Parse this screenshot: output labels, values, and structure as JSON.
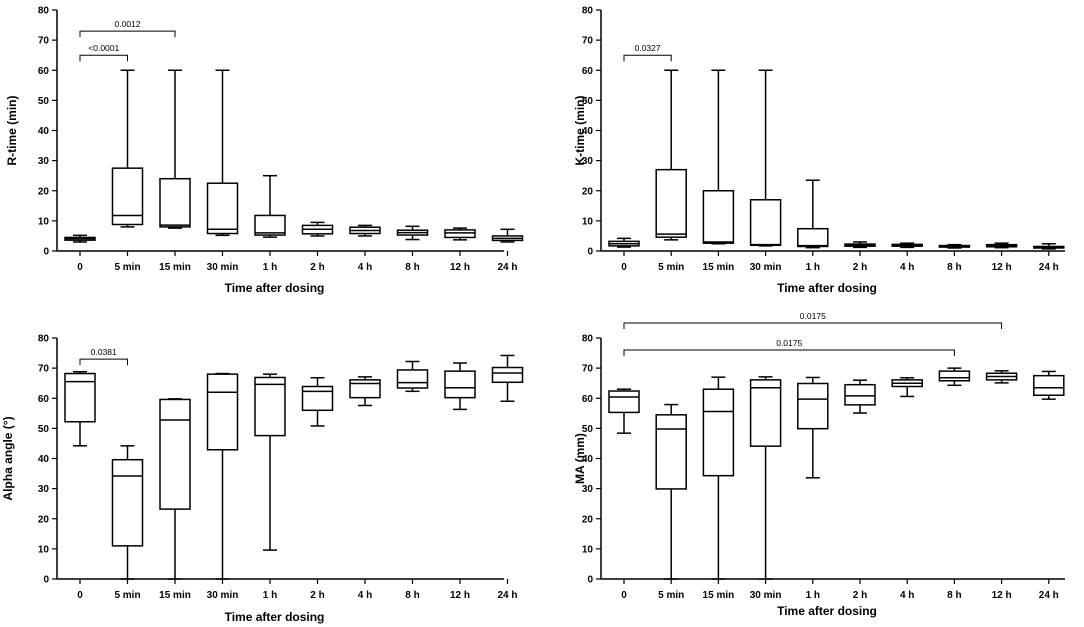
{
  "chart_data": [
    {
      "type": "boxplot",
      "id": "r-time",
      "xlabel": "Time after dosing",
      "ylabel": "R-time (min)",
      "ylim": [
        0,
        80
      ],
      "yticks": [
        0,
        10,
        20,
        30,
        40,
        50,
        60,
        70,
        80
      ],
      "categories": [
        "0",
        "5 min",
        "15 min",
        "30 min",
        "1 h",
        "2 h",
        "4 h",
        "8 h",
        "12 h",
        "24 h"
      ],
      "boxes": [
        {
          "min": 3,
          "q1": 3.6,
          "median": 4.1,
          "q3": 4.5,
          "max": 5.2
        },
        {
          "min": 8,
          "q1": 8.8,
          "median": 11.8,
          "q3": 27.5,
          "max": 60
        },
        {
          "min": 7.6,
          "q1": 8,
          "median": 8.6,
          "q3": 24,
          "max": 60
        },
        {
          "min": 5.2,
          "q1": 5.8,
          "median": 7.2,
          "q3": 22.5,
          "max": 60
        },
        {
          "min": 4.6,
          "q1": 5.3,
          "median": 6,
          "q3": 11.8,
          "max": 25
        },
        {
          "min": 5,
          "q1": 5.7,
          "median": 7.2,
          "q3": 8.5,
          "max": 9.5
        },
        {
          "min": 5,
          "q1": 5.8,
          "median": 6.8,
          "q3": 7.9,
          "max": 8.5
        },
        {
          "min": 3.8,
          "q1": 5.3,
          "median": 6.1,
          "q3": 6.9,
          "max": 8.2
        },
        {
          "min": 3.7,
          "q1": 4.5,
          "median": 6,
          "q3": 7,
          "max": 7.6
        },
        {
          "min": 3,
          "q1": 3.5,
          "median": 4.2,
          "q3": 5,
          "max": 7.2
        }
      ],
      "significance": [
        {
          "from": 0,
          "to": 2,
          "y": 73,
          "label": "0.0012"
        },
        {
          "from": 0,
          "to": 1,
          "y": 65,
          "label": "<0.0001"
        }
      ]
    },
    {
      "type": "boxplot",
      "id": "k-time",
      "xlabel": "Time after dosing",
      "ylabel": "K-time (min)",
      "ylim": [
        0,
        80
      ],
      "yticks": [
        0,
        10,
        20,
        30,
        40,
        50,
        60,
        70,
        80
      ],
      "categories": [
        "0",
        "5 min",
        "15 min",
        "30 min",
        "1 h",
        "2 h",
        "4 h",
        "8 h",
        "12 h",
        "24 h"
      ],
      "boxes": [
        {
          "min": 1.3,
          "q1": 1.7,
          "median": 2.4,
          "q3": 3.2,
          "max": 4.2
        },
        {
          "min": 3.7,
          "q1": 4.6,
          "median": 5.6,
          "q3": 27,
          "max": 60
        },
        {
          "min": 2.4,
          "q1": 2.6,
          "median": 3,
          "q3": 20,
          "max": 60
        },
        {
          "min": 1.7,
          "q1": 1.9,
          "median": 2.1,
          "q3": 17,
          "max": 60
        },
        {
          "min": 1.1,
          "q1": 1.5,
          "median": 1.8,
          "q3": 7.4,
          "max": 23.5
        },
        {
          "min": 1.2,
          "q1": 1.6,
          "median": 2,
          "q3": 2.3,
          "max": 3
        },
        {
          "min": 1.2,
          "q1": 1.6,
          "median": 1.9,
          "q3": 2.2,
          "max": 2.6
        },
        {
          "min": 1,
          "q1": 1.3,
          "median": 1.5,
          "q3": 1.8,
          "max": 2.1
        },
        {
          "min": 1.1,
          "q1": 1.4,
          "median": 1.7,
          "q3": 2.1,
          "max": 2.6
        },
        {
          "min": 0.7,
          "q1": 1,
          "median": 1.3,
          "q3": 1.5,
          "max": 2.4
        }
      ],
      "significance": [
        {
          "from": 0,
          "to": 1,
          "y": 65,
          "label": "0.0327"
        }
      ]
    },
    {
      "type": "boxplot",
      "id": "alpha-angle",
      "xlabel": "Time after dosing",
      "ylabel": "Alpha angle (°)",
      "ylim": [
        0,
        80
      ],
      "yticks": [
        0,
        10,
        20,
        30,
        40,
        50,
        60,
        70,
        80
      ],
      "categories": [
        "0",
        "5 min",
        "15 min",
        "30 min",
        "1 h",
        "2 h",
        "4 h",
        "8 h",
        "12 h",
        "24 h"
      ],
      "boxes": [
        {
          "min": 44.2,
          "q1": 52.2,
          "median": 65.5,
          "q3": 68.2,
          "max": 68.8
        },
        {
          "min": 0,
          "q1": 11,
          "median": 34.2,
          "q3": 39.6,
          "max": 44.2
        },
        {
          "min": 0,
          "q1": 23.2,
          "median": 52.8,
          "q3": 59.6,
          "max": 59.8
        },
        {
          "min": 0,
          "q1": 42.9,
          "median": 62,
          "q3": 68,
          "max": 68.2
        },
        {
          "min": 9.6,
          "q1": 47.6,
          "median": 64.6,
          "q3": 66.9,
          "max": 68
        },
        {
          "min": 50.8,
          "q1": 56,
          "median": 62.3,
          "q3": 63.9,
          "max": 66.8
        },
        {
          "min": 57.6,
          "q1": 60.2,
          "median": 64.9,
          "q3": 66.1,
          "max": 67.1
        },
        {
          "min": 62.3,
          "q1": 63.4,
          "median": 65.2,
          "q3": 69.4,
          "max": 72.2
        },
        {
          "min": 56.3,
          "q1": 60.2,
          "median": 63.5,
          "q3": 69,
          "max": 71.7
        },
        {
          "min": 59,
          "q1": 65.3,
          "median": 68.4,
          "q3": 70.2,
          "max": 74.2
        }
      ],
      "significance": [
        {
          "from": 0,
          "to": 1,
          "y": 73,
          "label": "0.0381"
        }
      ]
    },
    {
      "type": "boxplot",
      "id": "ma",
      "xlabel": "Time after dosing",
      "ylabel": "MA (mm)",
      "ylim": [
        0,
        80
      ],
      "yticks": [
        0,
        10,
        20,
        30,
        40,
        50,
        60,
        70,
        80
      ],
      "categories": [
        "0",
        "5 min",
        "15 min",
        "30 min",
        "1 h",
        "2 h",
        "4 h",
        "8 h",
        "12 h",
        "24 h"
      ],
      "boxes": [
        {
          "min": 48.4,
          "q1": 55.3,
          "median": 60.4,
          "q3": 62.4,
          "max": 63
        },
        {
          "min": 0,
          "q1": 29.9,
          "median": 49.8,
          "q3": 54.5,
          "max": 57.9
        },
        {
          "min": 0,
          "q1": 34.3,
          "median": 55.6,
          "q3": 63,
          "max": 67
        },
        {
          "min": 0,
          "q1": 44.1,
          "median": 63.5,
          "q3": 66.1,
          "max": 67.1
        },
        {
          "min": 33.6,
          "q1": 49.9,
          "median": 59.7,
          "q3": 64.9,
          "max": 66.9
        },
        {
          "min": 55.1,
          "q1": 57.8,
          "median": 60.8,
          "q3": 64.5,
          "max": 66
        },
        {
          "min": 60.6,
          "q1": 63.9,
          "median": 65,
          "q3": 66.1,
          "max": 66.8
        },
        {
          "min": 64.3,
          "q1": 65.8,
          "median": 66.8,
          "q3": 69,
          "max": 70
        },
        {
          "min": 65.1,
          "q1": 66.1,
          "median": 67.2,
          "q3": 68.3,
          "max": 69.1
        },
        {
          "min": 59.7,
          "q1": 61,
          "median": 63.5,
          "q3": 67.5,
          "max": 68.9
        }
      ],
      "significance": [
        {
          "from": 0,
          "to": 8,
          "y": 85,
          "label": "0.0175"
        },
        {
          "from": 0,
          "to": 7,
          "y": 76,
          "label": "0.0175"
        }
      ]
    }
  ]
}
